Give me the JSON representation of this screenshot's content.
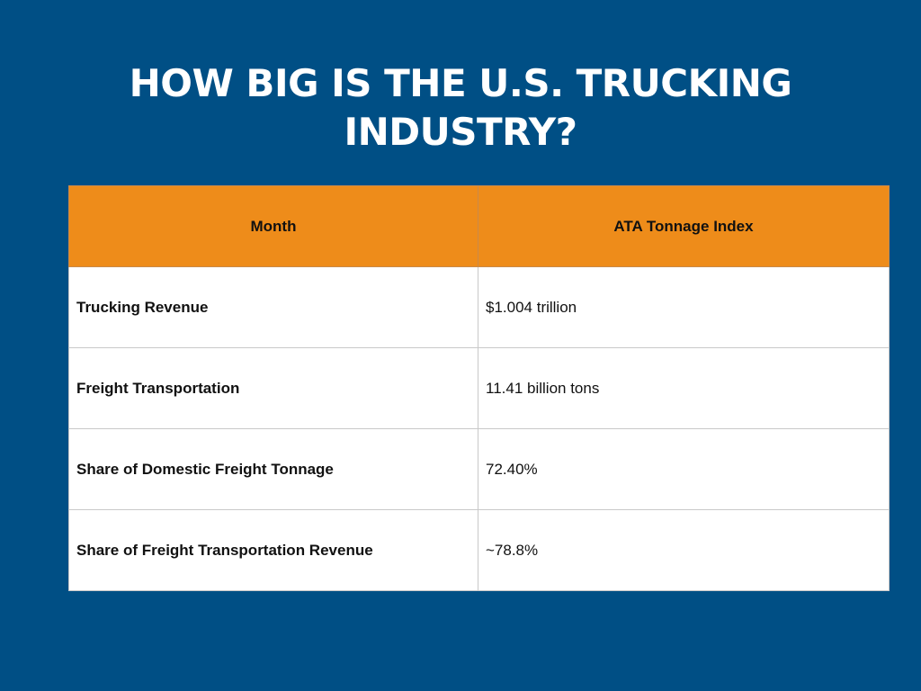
{
  "title": {
    "line1": "HOW BIG IS THE U.S. TRUCKING",
    "line2": "INDUSTRY?"
  },
  "table": {
    "headers": [
      "Month",
      "ATA Tonnage Index"
    ],
    "rows": [
      {
        "label": "Trucking Revenue",
        "value": "$1.004 trillion"
      },
      {
        "label": "Freight Transportation",
        "value": "11.41 billion tons"
      },
      {
        "label": "Share of Domestic Freight Tonnage",
        "value": "72.40%"
      },
      {
        "label": "Share of Freight Transportation Revenue",
        "value": "~78.8%"
      }
    ]
  },
  "colors": {
    "background": "#004f85",
    "header": "#ee8c1a",
    "title_text": "#ffffff"
  }
}
